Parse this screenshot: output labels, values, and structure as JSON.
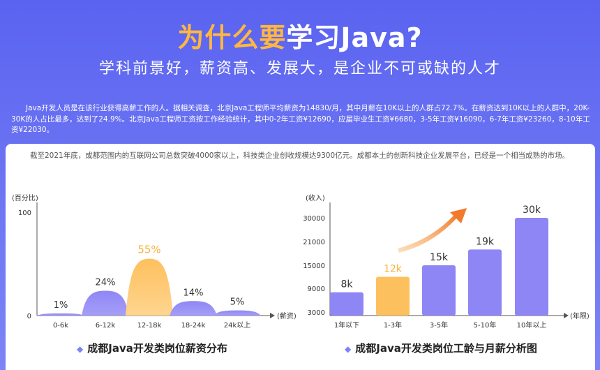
{
  "header": {
    "title_highlight": "为什么要",
    "title_rest": "学习Java?",
    "subtitle": "学科前景好，薪资高、发展大，是企业不可或缺的人才"
  },
  "intro_text": "Java开发人员是在该行业获得高薪工作的人。据相关调查，北京Java工程师平均薪资为14830/月，其中月薪在10K以上的人群占72.7%。在薪资达到10K以上的人群中，20K-30K的人占比最多，达到了24.9%。北京Java工程师工资按工作经验统计，其中0-2年工资¥12690，应届毕业生工资¥6680，3-5年工资¥16090，6-7年工资¥23260，8-10年工资¥22030。",
  "card_text": "截至2021年底，成都范围内的互联网公司总数突破4000家以上，科技类企业创收规模达9300亿元。成都本土的创新科技企业发展平台，已经是一个相当成熟的市场。",
  "colors": {
    "purple": "#8f86f5",
    "purple_light": "#a69ef8",
    "orange": "#fdc05e",
    "orange_label": "#fbb13c",
    "text": "#333333",
    "axis": "#555555",
    "arrow": "#f27a2a"
  },
  "chart_data": [
    {
      "type": "area",
      "title": "成都Java开发类岗位薪资分布",
      "xlabel": "(薪资)",
      "ylabel": "(百分比)",
      "y_ticks": [
        "0",
        "100"
      ],
      "ylim": [
        0,
        100
      ],
      "categories": [
        "0-6k",
        "6-12k",
        "12-18k",
        "18-24k",
        "24k以上"
      ],
      "values": [
        1,
        24,
        55,
        14,
        5
      ],
      "data_labels": [
        "1%",
        "24%",
        "55%",
        "14%",
        "5%"
      ],
      "highlight_index": 2
    },
    {
      "type": "bar",
      "title": "成都Java开发类岗位工龄与月薪分析图",
      "xlabel": "(年限)",
      "ylabel": "(收入)",
      "y_ticks": [
        "3000",
        "9000",
        "15000",
        "21000",
        "30000"
      ],
      "categories": [
        "1年以下",
        "1-3年",
        "3-5年",
        "5-10年",
        "10年以上"
      ],
      "values": [
        8000,
        12000,
        15000,
        19000,
        30000
      ],
      "data_labels": [
        "8k",
        "12k",
        "15k",
        "19k",
        "30k"
      ],
      "highlight_index": 1
    }
  ]
}
